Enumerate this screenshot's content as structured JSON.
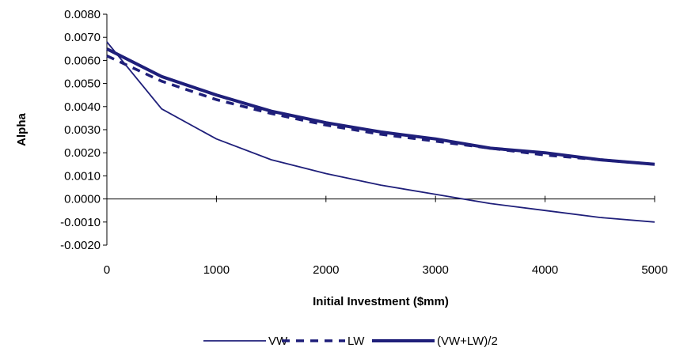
{
  "chart_data": {
    "type": "line",
    "title": "",
    "xlabel": "Initial Investment ($mm)",
    "ylabel": "Alpha",
    "xlim": [
      0,
      5000
    ],
    "ylim": [
      -0.002,
      0.008
    ],
    "xticks": [
      "0",
      "1000",
      "2000",
      "3000",
      "4000",
      "5000"
    ],
    "yticks": [
      "-0.0020",
      "-0.0010",
      "0.0000",
      "0.0010",
      "0.0020",
      "0.0030",
      "0.0040",
      "0.0050",
      "0.0060",
      "0.0070",
      "0.0080"
    ],
    "grid": false,
    "legend_position": "bottom",
    "x": [
      0,
      500,
      1000,
      1500,
      2000,
      2500,
      3000,
      3500,
      4000,
      4500,
      5000
    ],
    "series": [
      {
        "name": "VW",
        "style": "thin-solid",
        "color": "#1f1f7a",
        "values": [
          0.0068,
          0.0039,
          0.0026,
          0.0017,
          0.0011,
          0.0006,
          0.0002,
          -0.0002,
          -0.0005,
          -0.0008,
          -0.001
        ]
      },
      {
        "name": "LW",
        "style": "dashed",
        "color": "#1f1f7a",
        "values": [
          0.0062,
          0.0051,
          0.0043,
          0.0037,
          0.0032,
          0.0028,
          0.0025,
          0.0022,
          0.0019,
          0.0017,
          0.0015
        ]
      },
      {
        "name": "(VW+LW)/2",
        "style": "thick-solid",
        "color": "#1f1f7a",
        "values": [
          0.0065,
          0.0053,
          0.0045,
          0.0038,
          0.0033,
          0.0029,
          0.0026,
          0.0022,
          0.002,
          0.0017,
          0.0015
        ]
      }
    ]
  }
}
